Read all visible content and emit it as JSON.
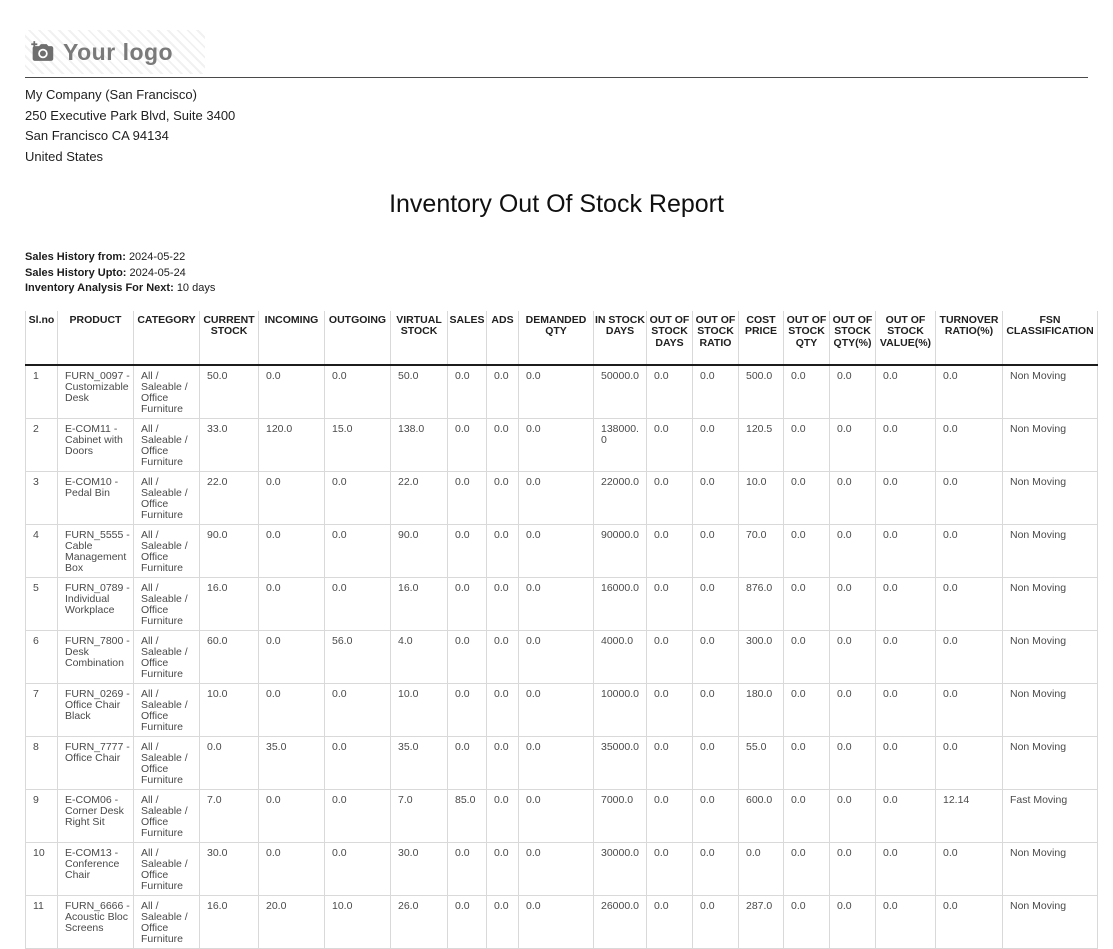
{
  "logo": {
    "icon": "camera-icon",
    "text": "Your logo"
  },
  "company": {
    "name": "My Company (San Francisco)",
    "street": "250 Executive Park Blvd, Suite 3400",
    "city": "San Francisco CA 94134",
    "country": "United States"
  },
  "title": "Inventory Out Of Stock Report",
  "info": {
    "0": {
      "label": "Sales History from:",
      "value": "2024-05-22"
    },
    "1": {
      "label": "Sales History Upto:",
      "value": "2024-05-24"
    },
    "2": {
      "label": "Inventory Analysis For Next:",
      "value": "10 days"
    }
  },
  "table": {
    "columns": [
      "Sl.no",
      "PRODUCT",
      "CATEGORY",
      "CURRENT STOCK",
      "INCOMING",
      "OUTGOING",
      "VIRTUAL STOCK",
      "SALES",
      "ADS",
      "DEMANDED QTY",
      "IN STOCK DAYS",
      "OUT OF STOCK DAYS",
      "OUT OF STOCK RATIO",
      "COST PRICE",
      "OUT OF STOCK QTY",
      "OUT OF STOCK QTY(%)",
      "OUT OF STOCK VALUE(%)",
      "TURNOVER RATIO(%)",
      "FSN CLASSIFICATION"
    ],
    "rows": [
      [
        "1",
        "FURN_0097 - Customizable Desk",
        "All / Saleable / Office Furniture",
        "50.0",
        "0.0",
        "0.0",
        "50.0",
        "0.0",
        "0.0",
        "0.0",
        "50000.0",
        "0.0",
        "0.0",
        "500.0",
        "0.0",
        "0.0",
        "0.0",
        "0.0",
        "Non Moving"
      ],
      [
        "2",
        "E-COM11 - Cabinet with Doors",
        "All / Saleable / Office Furniture",
        "33.0",
        "120.0",
        "15.0",
        "138.0",
        "0.0",
        "0.0",
        "0.0",
        "138000.0",
        "0.0",
        "0.0",
        "120.5",
        "0.0",
        "0.0",
        "0.0",
        "0.0",
        "Non Moving"
      ],
      [
        "3",
        "E-COM10 - Pedal Bin",
        "All / Saleable / Office Furniture",
        "22.0",
        "0.0",
        "0.0",
        "22.0",
        "0.0",
        "0.0",
        "0.0",
        "22000.0",
        "0.0",
        "0.0",
        "10.0",
        "0.0",
        "0.0",
        "0.0",
        "0.0",
        "Non Moving"
      ],
      [
        "4",
        "FURN_5555 - Cable Management Box",
        "All / Saleable / Office Furniture",
        "90.0",
        "0.0",
        "0.0",
        "90.0",
        "0.0",
        "0.0",
        "0.0",
        "90000.0",
        "0.0",
        "0.0",
        "70.0",
        "0.0",
        "0.0",
        "0.0",
        "0.0",
        "Non Moving"
      ],
      [
        "5",
        "FURN_0789 - Individual Workplace",
        "All / Saleable / Office Furniture",
        "16.0",
        "0.0",
        "0.0",
        "16.0",
        "0.0",
        "0.0",
        "0.0",
        "16000.0",
        "0.0",
        "0.0",
        "876.0",
        "0.0",
        "0.0",
        "0.0",
        "0.0",
        "Non Moving"
      ],
      [
        "6",
        "FURN_7800 - Desk Combination",
        "All / Saleable / Office Furniture",
        "60.0",
        "0.0",
        "56.0",
        "4.0",
        "0.0",
        "0.0",
        "0.0",
        "4000.0",
        "0.0",
        "0.0",
        "300.0",
        "0.0",
        "0.0",
        "0.0",
        "0.0",
        "Non Moving"
      ],
      [
        "7",
        "FURN_0269 - Office Chair Black",
        "All / Saleable / Office Furniture",
        "10.0",
        "0.0",
        "0.0",
        "10.0",
        "0.0",
        "0.0",
        "0.0",
        "10000.0",
        "0.0",
        "0.0",
        "180.0",
        "0.0",
        "0.0",
        "0.0",
        "0.0",
        "Non Moving"
      ],
      [
        "8",
        "FURN_7777 - Office Chair",
        "All / Saleable / Office Furniture",
        "0.0",
        "35.0",
        "0.0",
        "35.0",
        "0.0",
        "0.0",
        "0.0",
        "35000.0",
        "0.0",
        "0.0",
        "55.0",
        "0.0",
        "0.0",
        "0.0",
        "0.0",
        "Non Moving"
      ],
      [
        "9",
        "E-COM06 - Corner Desk Right Sit",
        "All / Saleable / Office Furniture",
        "7.0",
        "0.0",
        "0.0",
        "7.0",
        "85.0",
        "0.0",
        "0.0",
        "7000.0",
        "0.0",
        "0.0",
        "600.0",
        "0.0",
        "0.0",
        "0.0",
        "12.14",
        "Fast Moving"
      ],
      [
        "10",
        "E-COM13 - Conference Chair",
        "All / Saleable / Office Furniture",
        "30.0",
        "0.0",
        "0.0",
        "30.0",
        "0.0",
        "0.0",
        "0.0",
        "30000.0",
        "0.0",
        "0.0",
        "0.0",
        "0.0",
        "0.0",
        "0.0",
        "0.0",
        "Non Moving"
      ],
      [
        "11",
        "FURN_6666 - Acoustic Bloc Screens",
        "All / Saleable / Office Furniture",
        "16.0",
        "20.0",
        "10.0",
        "26.0",
        "0.0",
        "0.0",
        "0.0",
        "26000.0",
        "0.0",
        "0.0",
        "287.0",
        "0.0",
        "0.0",
        "0.0",
        "0.0",
        "Non Moving"
      ]
    ]
  }
}
